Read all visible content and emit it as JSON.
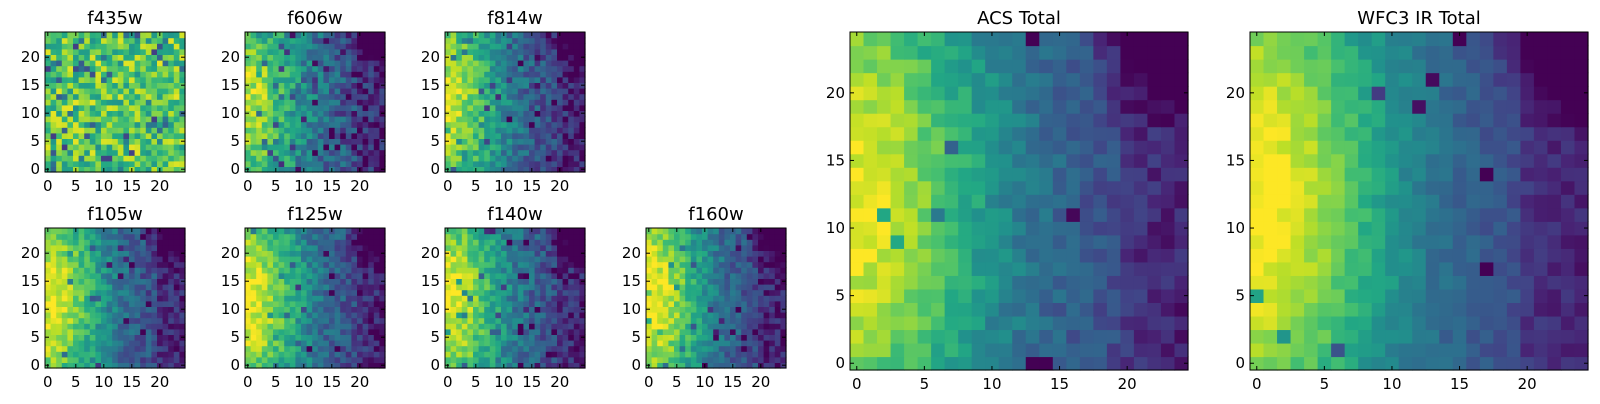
{
  "figure": {
    "colormap": "viridis",
    "tick_labels_shared": [
      "0",
      "5",
      "10",
      "15",
      "20"
    ]
  },
  "chart_data": [
    {
      "type": "heatmap",
      "title": "f435w",
      "grid": [
        25,
        25
      ],
      "xlim": [
        0,
        24
      ],
      "ylim": [
        0,
        24
      ],
      "x_ticks": [
        0,
        5,
        10,
        15,
        20
      ],
      "y_ticks": [
        0,
        5,
        10,
        15,
        20
      ],
      "colormap": "viridis",
      "pattern": "noisy, mostly yellow-green",
      "bright_region": "scattered",
      "seed": 11,
      "center": 0.74,
      "ridge": 0.08,
      "noise": 0.45,
      "dark_fraction": 0.12
    },
    {
      "type": "heatmap",
      "title": "f606w",
      "grid": [
        25,
        25
      ],
      "xlim": [
        0,
        24
      ],
      "ylim": [
        0,
        24
      ],
      "x_ticks": [
        0,
        5,
        10,
        15,
        20
      ],
      "y_ticks": [
        0,
        5,
        10,
        15,
        20
      ],
      "colormap": "viridis",
      "pattern": "bright at left edge, fading right",
      "bright_region": "left",
      "seed": 23,
      "center": 0.52,
      "ridge": 0.45,
      "noise": 0.32,
      "dark_fraction": 0.06
    },
    {
      "type": "heatmap",
      "title": "f814w",
      "grid": [
        25,
        25
      ],
      "xlim": [
        0,
        24
      ],
      "ylim": [
        0,
        24
      ],
      "x_ticks": [
        0,
        5,
        10,
        15,
        20
      ],
      "y_ticks": [
        0,
        5,
        10,
        15,
        20
      ],
      "colormap": "viridis",
      "pattern": "bright at left edge, fading right",
      "bright_region": "left",
      "seed": 37,
      "center": 0.48,
      "ridge": 0.5,
      "noise": 0.28,
      "dark_fraction": 0.05
    },
    {
      "type": "heatmap",
      "title": "f105w",
      "grid": [
        25,
        25
      ],
      "xlim": [
        0,
        24
      ],
      "ylim": [
        0,
        24
      ],
      "x_ticks": [
        0,
        5,
        10,
        15,
        20
      ],
      "y_ticks": [
        0,
        5,
        10,
        15,
        20
      ],
      "colormap": "viridis",
      "pattern": "bright at left edge, fading right",
      "bright_region": "left",
      "seed": 41,
      "center": 0.5,
      "ridge": 0.55,
      "noise": 0.24,
      "dark_fraction": 0.03
    },
    {
      "type": "heatmap",
      "title": "f125w",
      "grid": [
        25,
        25
      ],
      "xlim": [
        0,
        24
      ],
      "ylim": [
        0,
        24
      ],
      "x_ticks": [
        0,
        5,
        10,
        15,
        20
      ],
      "y_ticks": [
        0,
        5,
        10,
        15,
        20
      ],
      "colormap": "viridis",
      "pattern": "bright at left edge, fading right",
      "bright_region": "left",
      "seed": 53,
      "center": 0.5,
      "ridge": 0.55,
      "noise": 0.26,
      "dark_fraction": 0.04
    },
    {
      "type": "heatmap",
      "title": "f140w",
      "grid": [
        25,
        25
      ],
      "xlim": [
        0,
        24
      ],
      "ylim": [
        0,
        24
      ],
      "x_ticks": [
        0,
        5,
        10,
        15,
        20
      ],
      "y_ticks": [
        0,
        5,
        10,
        15,
        20
      ],
      "colormap": "viridis",
      "pattern": "bright at left edge, fading right",
      "bright_region": "left",
      "seed": 67,
      "center": 0.5,
      "ridge": 0.55,
      "noise": 0.26,
      "dark_fraction": 0.04
    },
    {
      "type": "heatmap",
      "title": "f160w",
      "grid": [
        25,
        25
      ],
      "xlim": [
        0,
        24
      ],
      "ylim": [
        0,
        24
      ],
      "x_ticks": [
        0,
        5,
        10,
        15,
        20
      ],
      "y_ticks": [
        0,
        5,
        10,
        15,
        20
      ],
      "colormap": "viridis",
      "pattern": "bright at left edge, fading right",
      "bright_region": "left",
      "seed": 79,
      "center": 0.48,
      "ridge": 0.6,
      "noise": 0.24,
      "dark_fraction": 0.05
    },
    {
      "type": "heatmap",
      "title": "ACS Total",
      "grid": [
        25,
        25
      ],
      "xlim": [
        0,
        24
      ],
      "ylim": [
        0,
        24
      ],
      "x_ticks": [
        0,
        5,
        10,
        15,
        20
      ],
      "y_ticks": [
        0,
        5,
        10,
        15,
        20
      ],
      "colormap": "viridis",
      "pattern": "bright at left edge, dark at top-right",
      "bright_region": "left",
      "seed": 97,
      "center": 0.5,
      "ridge": 0.55,
      "noise": 0.16,
      "dark_fraction": 0.02
    },
    {
      "type": "heatmap",
      "title": "WFC3 IR Total",
      "grid": [
        25,
        25
      ],
      "xlim": [
        0,
        24
      ],
      "ylim": [
        0,
        24
      ],
      "x_ticks": [
        0,
        5,
        10,
        15,
        20
      ],
      "y_ticks": [
        0,
        5,
        10,
        15,
        20
      ],
      "colormap": "viridis",
      "pattern": "bright at left edge, dark at right",
      "bright_region": "left",
      "seed": 113,
      "center": 0.5,
      "ridge": 0.6,
      "noise": 0.12,
      "dark_fraction": 0.02
    }
  ]
}
